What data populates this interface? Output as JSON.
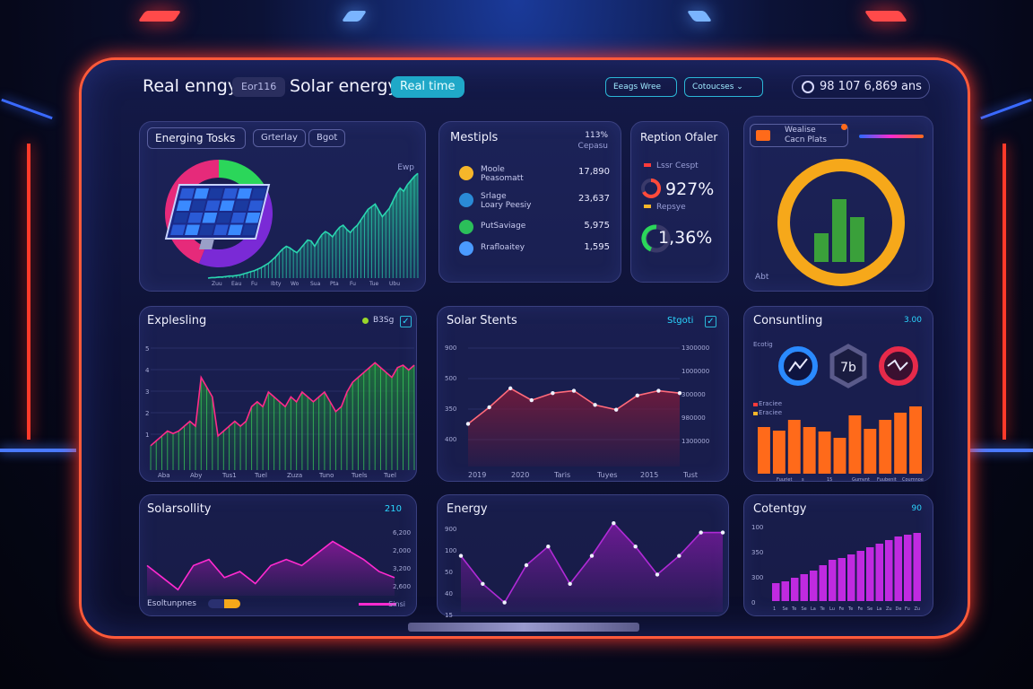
{
  "header": {
    "title_left": "Real enngy",
    "chip_dark": "Eor116",
    "title_main": "Solar energy",
    "chip_live": "Real time",
    "pill_1": "Eeags Wree",
    "pill_2": "Cotoucses",
    "clock": "98 107 6,869 ans"
  },
  "panels": {
    "p1": {
      "title": "Energing Tosks",
      "tab1": "Grterlay",
      "tab2": "Bgot",
      "corner": "Ewp",
      "ticks": [
        "Zuu",
        "Eau",
        "Fu",
        "Ibty",
        "Wo",
        "Sua",
        "Pta",
        "Fu",
        "Tue",
        "Ubu"
      ]
    },
    "p2": {
      "title": "Mestipls",
      "corner": "113%",
      "corner2": "Cepasu",
      "rows": [
        {
          "label": "Moole",
          "sub": "Peasomatt",
          "value": "17,890",
          "color": "#f6b62a"
        },
        {
          "label": "Srlage",
          "sub": "Loary Peesiy",
          "value": "23,637",
          "color": "#2a8ad6"
        },
        {
          "label": "PutSaviage",
          "sub": "",
          "value": "5,975",
          "color": "#2bbf5a"
        },
        {
          "label": "Rrafloaitey",
          "sub": "",
          "value": "1,595",
          "color": "#4a9aff"
        }
      ]
    },
    "p3": {
      "title": "Reption Ofaler",
      "tag1": "Lssr Cespt",
      "pct1": "927%",
      "tag2": "Repsye",
      "pct2": "1,36%"
    },
    "p4": {
      "title": "Wealise",
      "sub": "Cacn Plats",
      "corner": "Abt"
    },
    "p5": {
      "title": "Explesling",
      "corner": "B3Sg",
      "yticks": [
        "5",
        "4",
        "3",
        "2",
        "1"
      ],
      "xticks": [
        "Aba",
        "Aby",
        "Tus1",
        "Tuel",
        "Zuza",
        "Tuno",
        "Tuels",
        "Tuel"
      ]
    },
    "p6": {
      "title": "Solar Stents",
      "corner": "Stgoti",
      "yleft": [
        "900",
        "500",
        "350",
        "400"
      ],
      "yright": [
        "1300000",
        "1000000",
        "300000",
        "980000",
        "1300000"
      ],
      "xticks": [
        "2019",
        "2020",
        "Taris",
        "Tuyes",
        "2015",
        "Tust"
      ]
    },
    "p7": {
      "title": "Consuntling",
      "corner": "3.00",
      "tag": "Ecotig",
      "l1": "Eraciee",
      "l2": "Eraciee",
      "g2": "7b",
      "ticks": [
        "Fuuriet",
        "s",
        "15",
        "Gumvnt",
        "Fuubenit",
        "Coumnoe"
      ]
    },
    "p8": {
      "title": "Solarsollity",
      "corner": "210",
      "yright": [
        "6,200",
        "2,000",
        "3,200",
        "2,600"
      ],
      "legend": "Esoltunpnes",
      "legend2": "Sinsi"
    },
    "p9": {
      "title": "Energy",
      "yleft": [
        "900",
        "100",
        "50",
        "40",
        "15"
      ]
    },
    "p10": {
      "title": "Cotentgy",
      "corner": "90",
      "yleft": [
        "100",
        "350",
        "300",
        "0"
      ],
      "xticks": [
        "1",
        "Se",
        "Te",
        "Se",
        "La",
        "Te",
        "Lu",
        "Fe",
        "Te",
        "Fe",
        "Se",
        "La",
        "Zu",
        "De",
        "Fu",
        "Zu"
      ]
    }
  },
  "chart_data": [
    {
      "type": "area",
      "panel": "Energing Tosks",
      "values": [
        0,
        1,
        1,
        2,
        2,
        3,
        4,
        4,
        5,
        6,
        8,
        10,
        12,
        14,
        17,
        20,
        24,
        28,
        34,
        40,
        48,
        55,
        60,
        57,
        52,
        48,
        56,
        64,
        72,
        70,
        60,
        72,
        82,
        88,
        84,
        78,
        88,
        96,
        100,
        92,
        86,
        94,
        100,
        110,
        120,
        130,
        135,
        140,
        128,
        116,
        124,
        132,
        146,
        160,
        170,
        164,
        176,
        184,
        192,
        198
      ],
      "colors": {
        "line": "#2ad6b0"
      }
    },
    {
      "type": "pie",
      "panel": "Energing Tosks",
      "slices": [
        {
          "value": 16,
          "color": "#2bd65a"
        },
        {
          "value": 40,
          "color": "#7a2ad6"
        },
        {
          "value": 44,
          "color": "#e62a7a"
        }
      ]
    },
    {
      "type": "area",
      "panel": "Explesling",
      "values": [
        1.0,
        1.2,
        1.4,
        1.6,
        1.5,
        1.6,
        1.8,
        2.0,
        1.8,
        3.8,
        3.4,
        3.0,
        1.4,
        1.6,
        1.8,
        2.0,
        1.8,
        2.0,
        2.6,
        2.8,
        2.6,
        3.2,
        3.0,
        2.8,
        2.6,
        3.0,
        2.8,
        3.2,
        3.0,
        2.8,
        3.0,
        3.2,
        2.8,
        2.4,
        2.6,
        3.2,
        3.6,
        3.8,
        4.0,
        4.2,
        4.4,
        4.2,
        4.0,
        3.8,
        4.2,
        4.3,
        4.1,
        4.3
      ],
      "colors": {
        "line": "#ff2a8a",
        "fill": "#1f7a3a"
      }
    },
    {
      "type": "area",
      "panel": "Solar Stents",
      "values": [
        380,
        450,
        530,
        480,
        510,
        520,
        460,
        440,
        500,
        520,
        510
      ],
      "colors": {
        "line": "#ff6a7a",
        "fill": "#7a1a3a"
      }
    },
    {
      "type": "bar",
      "panel": "Consuntling",
      "values": [
        52,
        48,
        60,
        52,
        47,
        40,
        65,
        50,
        60,
        68,
        75
      ],
      "colors": {
        "bar": "#ff6a1a"
      }
    },
    {
      "type": "line",
      "panel": "Solarsollity",
      "values": [
        3000,
        2600,
        2200,
        3000,
        3200,
        2600,
        2800,
        2400,
        3000,
        3200,
        3000,
        3400,
        3800,
        3500,
        3200,
        2800,
        2600
      ],
      "colors": {
        "line": "#ff2ad0"
      }
    },
    {
      "type": "area",
      "panel": "Energy",
      "values": [
        60,
        30,
        10,
        50,
        70,
        30,
        60,
        95,
        70,
        40,
        60,
        85,
        85
      ],
      "colors": {
        "line": "#b02ad6"
      }
    },
    {
      "type": "bar",
      "panel": "Cotentgy",
      "values": [
        20,
        22,
        26,
        30,
        34,
        40,
        46,
        48,
        52,
        56,
        60,
        64,
        68,
        72,
        74,
        76
      ],
      "colors": {
        "bar": "#c02ae0"
      }
    }
  ]
}
